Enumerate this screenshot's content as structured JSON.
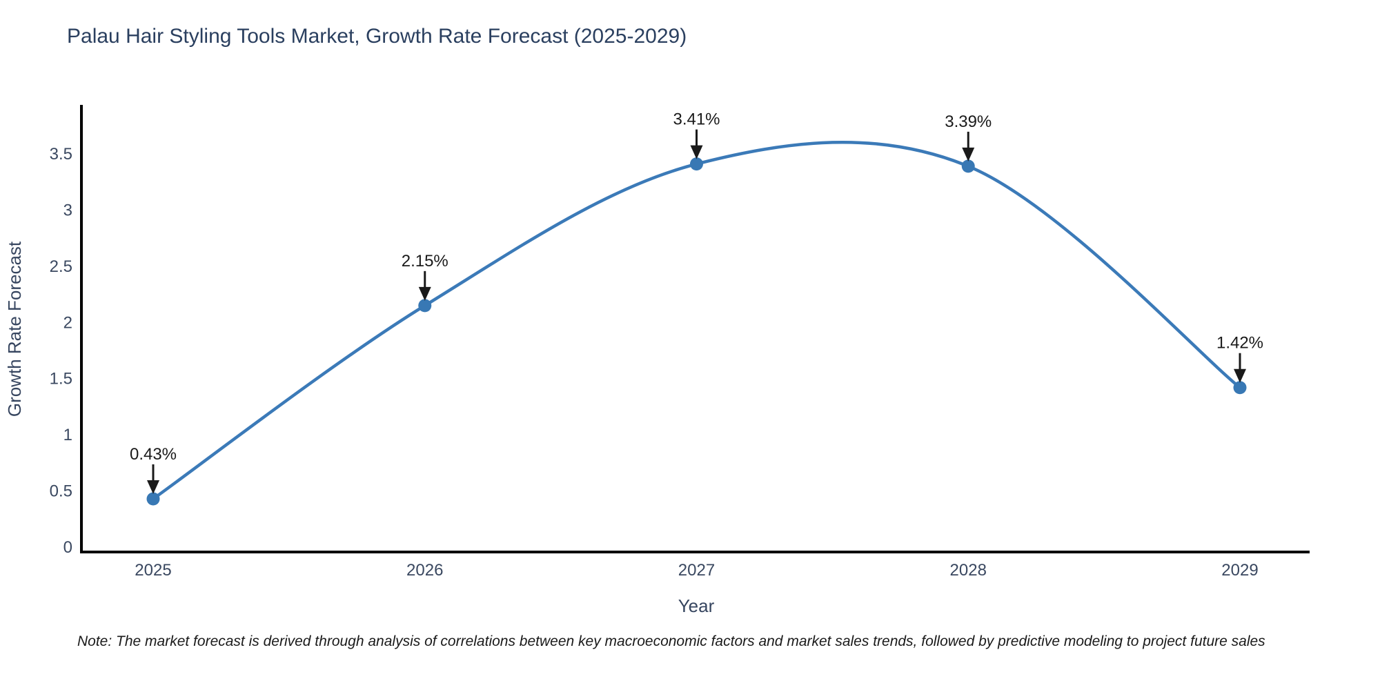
{
  "chart_data": {
    "type": "line",
    "title": "Palau Hair Styling Tools Market, Growth Rate Forecast (2025-2029)",
    "xlabel": "Year",
    "ylabel": "Growth Rate Forecast",
    "x": [
      2025,
      2026,
      2027,
      2028,
      2029
    ],
    "series": [
      {
        "name": "Growth Rate Forecast",
        "values": [
          0.43,
          2.15,
          3.41,
          3.39,
          1.42
        ],
        "point_labels": [
          "0.43%",
          "2.15%",
          "3.41%",
          "3.39%",
          "1.42%"
        ]
      }
    ],
    "y_ticks": [
      0,
      0.5,
      1,
      1.5,
      2,
      2.5,
      3,
      3.5
    ],
    "ylim": [
      0,
      3.95
    ],
    "line_shape": "spline",
    "grid": false,
    "legend": "none",
    "annotations_style": "black-down-arrows",
    "colors": {
      "line": "#3b7ab8",
      "marker": "#3878b4",
      "axis_line": "#000000",
      "title_text": "#2a3f5f",
      "axis_label_text": "#36455f",
      "tick_text": "#3a4860",
      "annotation_text": "#1a1a1a",
      "background": "#ffffff"
    }
  },
  "note": "Note: The market forecast is derived through analysis of correlations between key macroeconomic factors and market sales trends, followed by predictive modeling to project future sales"
}
